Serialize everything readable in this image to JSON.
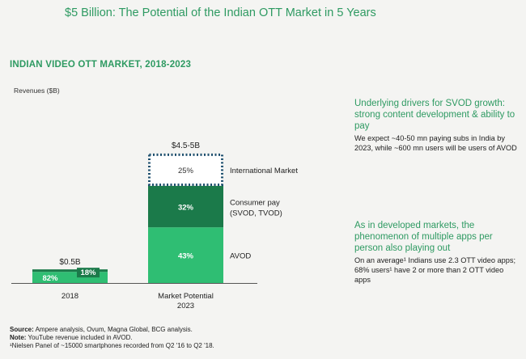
{
  "main_title": "$5 Billion: The Potential of the Indian OTT Market in 5 Years",
  "section_title": "INDIAN VIDEO OTT MARKET, 2018-2023",
  "chart_data": {
    "type": "bar",
    "stacked": true,
    "ylabel": "Revenues ($B)",
    "categories": [
      "2018",
      "Market Potential 2023"
    ],
    "totals": [
      "$0.5B",
      "$4.5-5B"
    ],
    "bars": [
      {
        "category": "2018",
        "total": 0.5,
        "segments": [
          {
            "name": "AVOD",
            "share": 82,
            "label": "82%",
            "color": "#2fbe73"
          },
          {
            "name": "Consumer pay",
            "share": 18,
            "label": "18%",
            "color": "#1b7a4a"
          }
        ]
      },
      {
        "category": "Market Potential 2023",
        "total": 4.75,
        "segments": [
          {
            "name": "AVOD",
            "share": 43,
            "label": "43%",
            "color": "#2fbe73"
          },
          {
            "name": "Consumer pay",
            "share": 32,
            "label": "32%",
            "color": "#1b7a4a"
          },
          {
            "name": "International Market",
            "share": 25,
            "label": "25%",
            "color": "#ffffff",
            "style": "dotted-outline"
          }
        ]
      }
    ],
    "segment_labels": {
      "international": "International Market",
      "consumer_line1": "Consumer pay",
      "consumer_line2": "(SVOD, TVOD)",
      "avod": "AVOD"
    },
    "category_labels": {
      "c1": "2018",
      "c2_line1": "Market Potential",
      "c2_line2": "2023"
    },
    "colors": {
      "avod": "#2fbe73",
      "consumer": "#1b7a4a",
      "outline": "#1d4f6e",
      "axis": "#555555"
    }
  },
  "drivers": [
    {
      "heading": "Underlying drivers for SVOD growth: strong content development & ability to pay",
      "body": "We expect ~40-50 mn paying subs in India by 2023, while ~600 mn users will be users of AVOD"
    },
    {
      "heading": "As in developed markets, the phenomenon of multiple apps per person also playing out",
      "body": "On an average¹ Indians use 2.3 OTT video apps; 68% users¹ have 2 or more than 2 OTT video apps"
    }
  ],
  "footer": {
    "source_label": "Source:",
    "source_text": " Ampere analysis, Ovum, Magna Global, BCG analysis.",
    "note_label": "Note:",
    "note_text": " YouTube revenue included in AVOD.",
    "footnote": "¹Nielsen Panel of ~15000 smartphones recorded from Q2 '16 to Q2 '18."
  }
}
